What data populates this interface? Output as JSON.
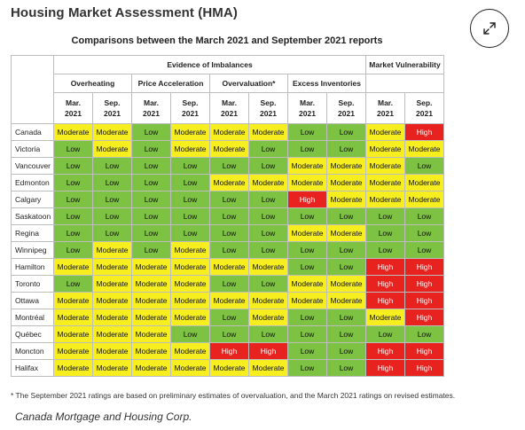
{
  "heading": "Housing Market Assessment (HMA)",
  "expand_icon": "expand-arrows-icon",
  "table_title": "Comparisons between the March 2021 and September 2021 reports",
  "group_headers": {
    "evidence": "Evidence of Imbalances",
    "vulnerability": "Market Vulnerability"
  },
  "categories": [
    "Overheating",
    "Price Acceleration",
    "Overvaluation*",
    "Excess Inventories"
  ],
  "periods": [
    [
      "Mar.",
      "2021"
    ],
    [
      "Sep.",
      "2021"
    ]
  ],
  "rows": [
    {
      "city": "Canada",
      "values": [
        "Moderate",
        "Moderate",
        "Low",
        "Moderate",
        "Moderate",
        "Moderate",
        "Low",
        "Low",
        "Moderate",
        "High"
      ]
    },
    {
      "city": "Victoria",
      "values": [
        "Low",
        "Moderate",
        "Low",
        "Moderate",
        "Moderate",
        "Low",
        "Low",
        "Low",
        "Moderate",
        "Moderate"
      ]
    },
    {
      "city": "Vancouver",
      "values": [
        "Low",
        "Low",
        "Low",
        "Low",
        "Low",
        "Low",
        "Moderate",
        "Moderate",
        "Moderate",
        "Low"
      ]
    },
    {
      "city": "Edmonton",
      "values": [
        "Low",
        "Low",
        "Low",
        "Low",
        "Moderate",
        "Moderate",
        "Moderate",
        "Moderate",
        "Moderate",
        "Moderate"
      ]
    },
    {
      "city": "Calgary",
      "values": [
        "Low",
        "Low",
        "Low",
        "Low",
        "Low",
        "Low",
        "High",
        "Moderate",
        "Moderate",
        "Moderate"
      ]
    },
    {
      "city": "Saskatoon",
      "values": [
        "Low",
        "Low",
        "Low",
        "Low",
        "Low",
        "Low",
        "Low",
        "Low",
        "Low",
        "Low"
      ]
    },
    {
      "city": "Regina",
      "values": [
        "Low",
        "Low",
        "Low",
        "Low",
        "Low",
        "Low",
        "Moderate",
        "Moderate",
        "Low",
        "Low"
      ]
    },
    {
      "city": "Winnipeg",
      "values": [
        "Low",
        "Moderate",
        "Low",
        "Moderate",
        "Low",
        "Low",
        "Low",
        "Low",
        "Low",
        "Low"
      ]
    },
    {
      "city": "Hamilton",
      "values": [
        "Moderate",
        "Moderate",
        "Moderate",
        "Moderate",
        "Moderate",
        "Moderate",
        "Low",
        "Low",
        "High",
        "High"
      ]
    },
    {
      "city": "Toronto",
      "values": [
        "Low",
        "Moderate",
        "Moderate",
        "Moderate",
        "Low",
        "Low",
        "Moderate",
        "Moderate",
        "High",
        "High"
      ]
    },
    {
      "city": "Ottawa",
      "values": [
        "Moderate",
        "Moderate",
        "Moderate",
        "Moderate",
        "Moderate",
        "Moderate",
        "Moderate",
        "Moderate",
        "High",
        "High"
      ]
    },
    {
      "city": "Montréal",
      "values": [
        "Moderate",
        "Moderate",
        "Moderate",
        "Moderate",
        "Low",
        "Moderate",
        "Low",
        "Low",
        "Moderate",
        "High"
      ]
    },
    {
      "city": "Québec",
      "values": [
        "Moderate",
        "Moderate",
        "Moderate",
        "Low",
        "Low",
        "Low",
        "Low",
        "Low",
        "Low",
        "Low"
      ]
    },
    {
      "city": "Moncton",
      "values": [
        "Moderate",
        "Moderate",
        "Moderate",
        "Moderate",
        "High",
        "High",
        "Low",
        "Low",
        "High",
        "High"
      ]
    },
    {
      "city": "Halifax",
      "values": [
        "Moderate",
        "Moderate",
        "Moderate",
        "Moderate",
        "Moderate",
        "Moderate",
        "Low",
        "Low",
        "High",
        "High"
      ]
    }
  ],
  "colors": {
    "Low": "#7dc242",
    "Moderate": "#f6ee1f",
    "High": "#e8231f"
  },
  "footnote": "* The September 2021 ratings are based on preliminary estimates of overvaluation, and the March 2021 ratings on revised estimates.",
  "source": "Canada Mortgage and Housing Corp."
}
